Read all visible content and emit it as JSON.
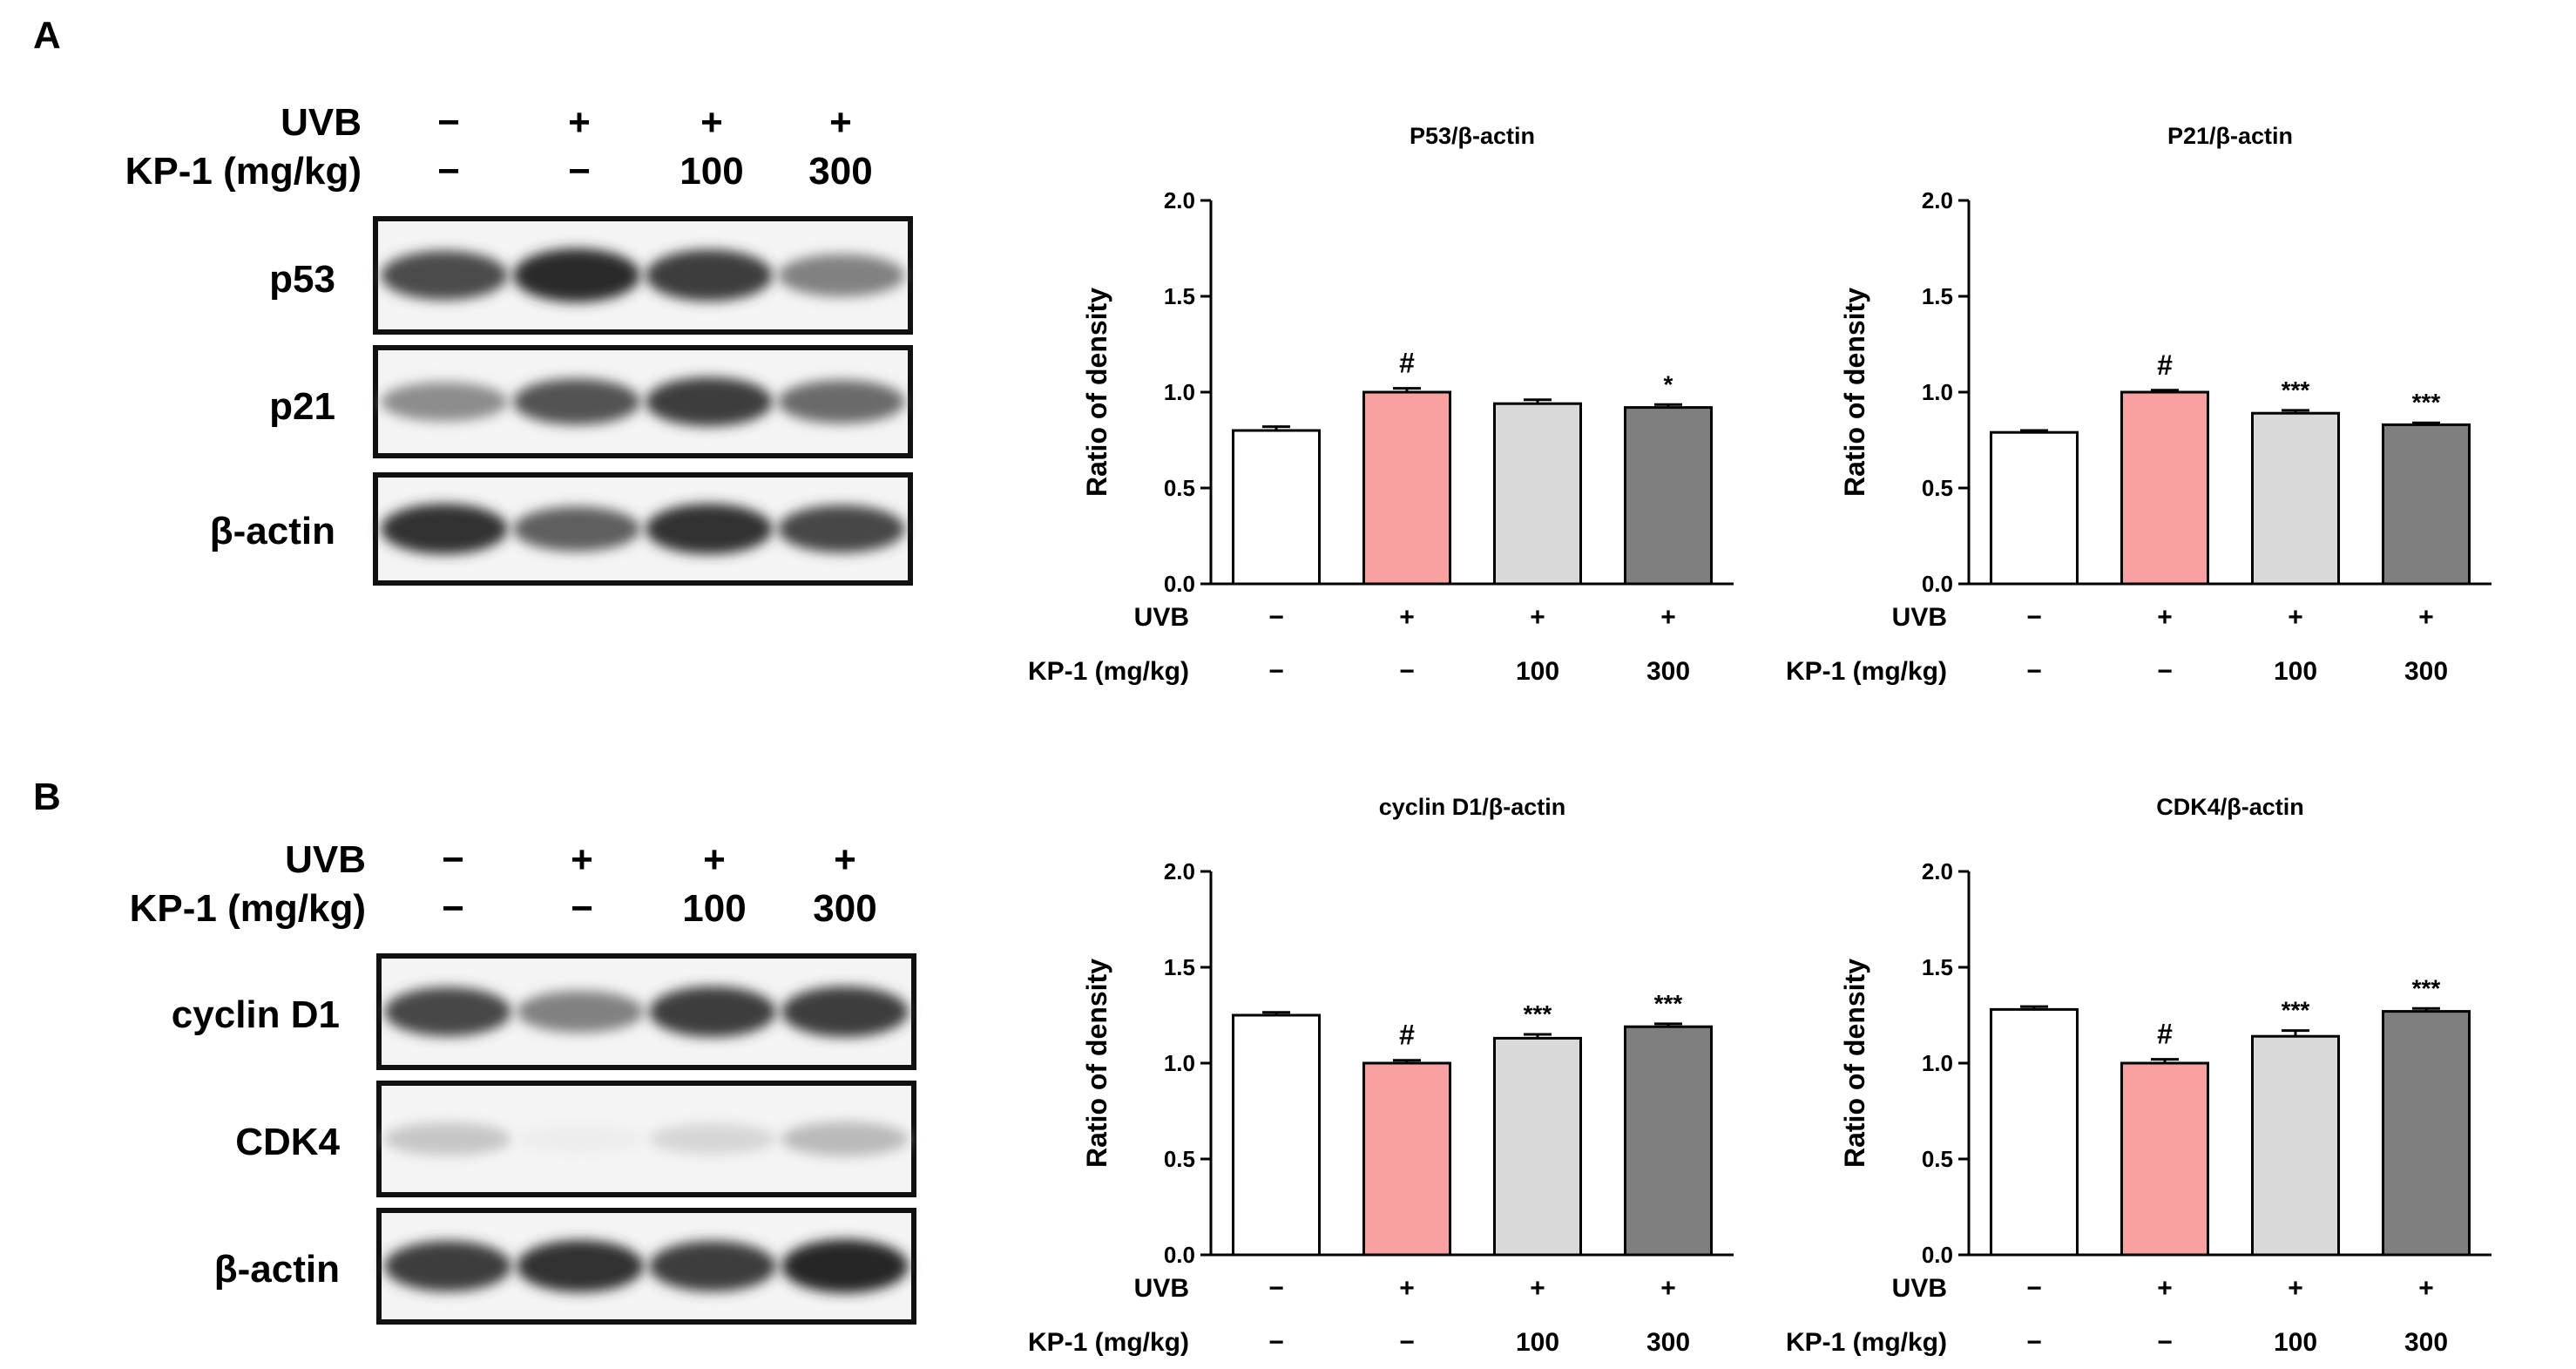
{
  "panels": [
    {
      "letter": "A",
      "treatment": {
        "uvb_label": "UVB",
        "kp_label": "KP-1 (mg/kg)",
        "uvb": [
          "−",
          "+",
          "+",
          "+"
        ],
        "kp": [
          "−",
          "−",
          "100",
          "300"
        ]
      },
      "blots": [
        {
          "label": "p53",
          "intensity": [
            0.78,
            0.92,
            0.85,
            0.55
          ]
        },
        {
          "label": "p21",
          "intensity": [
            0.5,
            0.75,
            0.85,
            0.65
          ]
        },
        {
          "label": "β-actin",
          "intensity": [
            0.9,
            0.7,
            0.9,
            0.8
          ]
        }
      ]
    },
    {
      "letter": "B",
      "treatment": {
        "uvb_label": "UVB",
        "kp_label": "KP-1 (mg/kg)",
        "uvb": [
          "−",
          "+",
          "+",
          "+"
        ],
        "kp": [
          "−",
          "−",
          "100",
          "300"
        ]
      },
      "blots": [
        {
          "label": "cyclin D1",
          "intensity": [
            0.8,
            0.55,
            0.85,
            0.85
          ]
        },
        {
          "label": "CDK4",
          "intensity": [
            0.25,
            0.08,
            0.18,
            0.3
          ]
        },
        {
          "label": "β-actin",
          "intensity": [
            0.85,
            0.9,
            0.85,
            0.95
          ]
        }
      ]
    }
  ],
  "colors": {
    "bar_fills": [
      "#ffffff",
      "#f9a1a1",
      "#d9d9d9",
      "#7f7f7f"
    ],
    "axis": "#000000"
  },
  "chart_data": [
    {
      "type": "bar",
      "title": "P53/β-actin",
      "ylabel": "Ratio of density",
      "ylim": [
        0,
        2.0
      ],
      "yticks": [
        "0.0",
        "0.5",
        "1.0",
        "1.5",
        "2.0"
      ],
      "values": [
        0.8,
        1.0,
        0.94,
        0.92
      ],
      "errors": [
        0.02,
        0.02,
        0.02,
        0.015
      ],
      "annotations": [
        "",
        "#",
        "",
        "*"
      ],
      "uvb_label": "UVB",
      "kp_label": "KP-1 (mg/kg)",
      "uvb": [
        "−",
        "+",
        "+",
        "+"
      ],
      "kp": [
        "−",
        "−",
        "100",
        "300"
      ]
    },
    {
      "type": "bar",
      "title": "P21/β-actin",
      "ylabel": "Ratio of density",
      "ylim": [
        0,
        2.0
      ],
      "yticks": [
        "0.0",
        "0.5",
        "1.0",
        "1.5",
        "2.0"
      ],
      "values": [
        0.79,
        1.0,
        0.89,
        0.83
      ],
      "errors": [
        0.01,
        0.01,
        0.015,
        0.01
      ],
      "annotations": [
        "",
        "#",
        "***",
        "***"
      ],
      "uvb_label": "UVB",
      "kp_label": "KP-1 (mg/kg)",
      "uvb": [
        "−",
        "+",
        "+",
        "+"
      ],
      "kp": [
        "−",
        "−",
        "100",
        "300"
      ]
    },
    {
      "type": "bar",
      "title": "cyclin D1/β-actin",
      "ylabel": "Ratio of density",
      "ylim": [
        0,
        2.0
      ],
      "yticks": [
        "0.0",
        "0.5",
        "1.0",
        "1.5",
        "2.0"
      ],
      "values": [
        1.25,
        1.0,
        1.13,
        1.19
      ],
      "errors": [
        0.015,
        0.015,
        0.02,
        0.015
      ],
      "annotations": [
        "",
        "#",
        "***",
        "***"
      ],
      "uvb_label": "UVB",
      "kp_label": "KP-1 (mg/kg)",
      "uvb": [
        "−",
        "+",
        "+",
        "+"
      ],
      "kp": [
        "−",
        "−",
        "100",
        "300"
      ]
    },
    {
      "type": "bar",
      "title": "CDK4/β-actin",
      "ylabel": "Ratio of density",
      "ylim": [
        0,
        2.0
      ],
      "yticks": [
        "0.0",
        "0.5",
        "1.0",
        "1.5",
        "2.0"
      ],
      "values": [
        1.28,
        1.0,
        1.14,
        1.27
      ],
      "errors": [
        0.015,
        0.02,
        0.03,
        0.015
      ],
      "annotations": [
        "",
        "#",
        "***",
        "***"
      ],
      "uvb_label": "UVB",
      "kp_label": "KP-1 (mg/kg)",
      "uvb": [
        "−",
        "+",
        "+",
        "+"
      ],
      "kp": [
        "−",
        "−",
        "100",
        "300"
      ]
    }
  ]
}
